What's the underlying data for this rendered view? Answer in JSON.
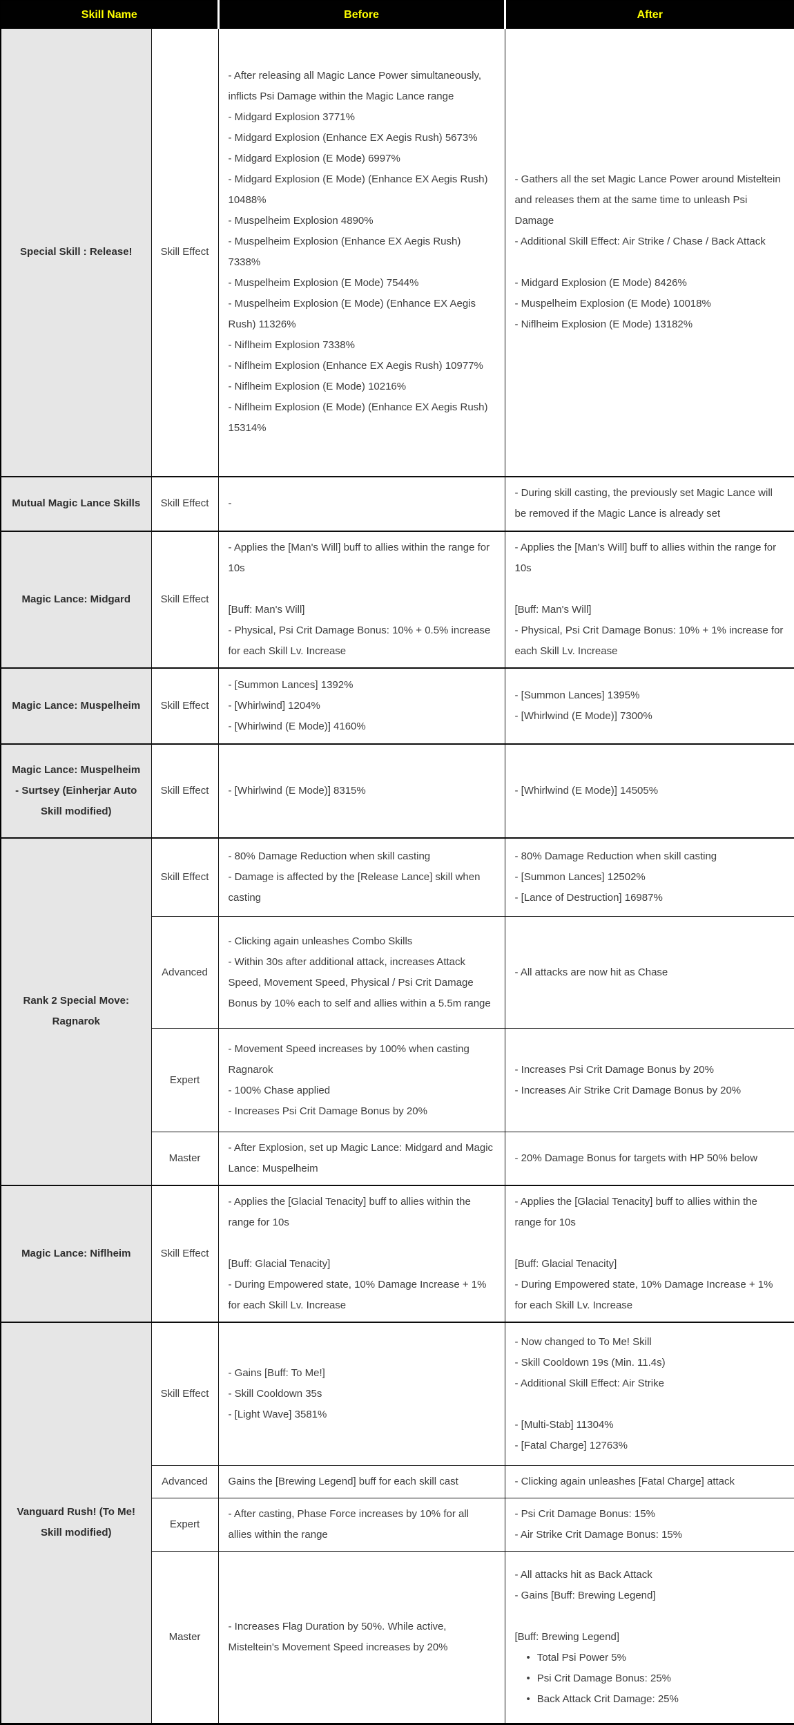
{
  "palette": {
    "header_bg": "#000000",
    "header_text": "#ffff00",
    "skill_name_col_bg": "#e6e6e6",
    "body_text": "#3d3d3d",
    "border": "#161616"
  },
  "header": {
    "skill_name": "Skill Name",
    "before": "Before",
    "after": "After"
  },
  "rows": [
    {
      "name": "Special Skill : Release!",
      "subs": [
        {
          "label": "Skill Effect",
          "before": [
            "- After releasing all Magic Lance Power simultaneously, inflicts Psi Damage within the Magic Lance range",
            "- Midgard Explosion 3771%",
            "- Midgard Explosion (Enhance EX Aegis Rush) 5673%",
            "- Midgard Explosion (E Mode) 6997%",
            "- Midgard Explosion (E Mode) (Enhance EX Aegis Rush) 10488%",
            "- Muspelheim Explosion 4890%",
            "- Muspelheim Explosion (Enhance EX Aegis Rush) 7338%",
            "- Muspelheim Explosion (E Mode) 7544%",
            "- Muspelheim Explosion (E Mode) (Enhance EX Aegis Rush) 11326%",
            "- Niflheim Explosion 7338%",
            "- Niflheim Explosion (Enhance EX Aegis Rush) 10977%",
            "- Niflheim Explosion (E Mode) 10216%",
            "- Niflheim Explosion (E Mode) (Enhance EX Aegis Rush) 15314%"
          ],
          "after": [
            "- Gathers all the set Magic Lance Power around Misteltein and releases them at the same time to unleash Psi Damage",
            "- Additional Skill Effect: Air Strike / Chase / Back Attack",
            "",
            "- Midgard Explosion (E Mode) 8426%",
            "- Muspelheim Explosion (E Mode) 10018%",
            "- Niflheim Explosion (E Mode) 13182%"
          ]
        }
      ]
    },
    {
      "name": "Mutual Magic Lance Skills",
      "subs": [
        {
          "label": "Skill Effect",
          "before": [
            "-"
          ],
          "after": [
            "- During skill casting, the previously set Magic Lance will be removed if the Magic Lance is already set"
          ]
        }
      ]
    },
    {
      "name": "Magic Lance: Midgard",
      "subs": [
        {
          "label": "Skill Effect",
          "before": [
            "- Applies the [Man's Will] buff to allies within the range for 10s",
            "",
            "[Buff: Man's Will]",
            "- Physical, Psi Crit Damage Bonus: 10% + 0.5% increase for each Skill Lv. Increase"
          ],
          "after": [
            "- Applies the [Man's Will] buff to allies within the range for 10s",
            "",
            "[Buff: Man's Will]",
            "- Physical, Psi Crit Damage Bonus: 10% + 1% increase for each Skill Lv. Increase"
          ]
        }
      ]
    },
    {
      "name": "Magic Lance: Muspelheim",
      "subs": [
        {
          "label": "Skill Effect",
          "before": [
            "- [Summon Lances] 1392%",
            "- [Whirlwind] 1204%",
            "- [Whirlwind (E Mode)] 4160%"
          ],
          "after": [
            "- [Summon Lances] 1395%",
            "- [Whirlwind (E Mode)] 7300%"
          ]
        }
      ]
    },
    {
      "name": "Magic Lance: Muspelheim - Surtsey (Einherjar Auto Skill modified)",
      "subs": [
        {
          "label": "Skill Effect",
          "before": [
            "- [Whirlwind (E Mode)] 8315%"
          ],
          "after": [
            "- [Whirlwind (E Mode)] 14505%"
          ]
        }
      ]
    },
    {
      "name": "Rank 2 Special Move: Ragnarok",
      "subs": [
        {
          "label": "Skill Effect",
          "before": [
            "- 80% Damage Reduction when skill casting",
            "- Damage is affected by the [Release Lance] skill when casting"
          ],
          "after": [
            "- 80% Damage Reduction when skill casting",
            "- [Summon Lances] 12502%",
            "- [Lance of Destruction] 16987%"
          ]
        },
        {
          "label": "Advanced",
          "before": [
            "- Clicking again unleashes Combo Skills",
            "- Within 30s after additional attack, increases Attack Speed, Movement Speed, Physical / Psi Crit Damage Bonus by 10% each to self and allies within a 5.5m range"
          ],
          "after": [
            "- All attacks are now hit as Chase"
          ]
        },
        {
          "label": "Expert",
          "before": [
            "- Movement Speed increases by 100% when casting Ragnarok",
            "- 100% Chase applied",
            "- Increases Psi Crit Damage Bonus by 20%"
          ],
          "after": [
            "- Increases Psi Crit Damage Bonus by 20%",
            "- Increases Air Strike Crit Damage Bonus by 20%"
          ]
        },
        {
          "label": "Master",
          "before": [
            "- After Explosion, set up Magic Lance: Midgard and Magic Lance: Muspelheim"
          ],
          "after": [
            "- 20% Damage Bonus for targets with HP 50% below"
          ]
        }
      ]
    },
    {
      "name": "Magic Lance: Niflheim",
      "subs": [
        {
          "label": "Skill Effect",
          "before": [
            "- Applies the [Glacial Tenacity] buff to allies within the range for 10s",
            "",
            "[Buff: Glacial Tenacity]",
            "- During Empowered state, 10% Damage Increase + 1% for each Skill Lv. Increase"
          ],
          "after": [
            "- Applies the [Glacial Tenacity] buff to allies within the range for 10s",
            "",
            "[Buff: Glacial Tenacity]",
            "- During Empowered state, 10% Damage Increase + 1% for each Skill Lv. Increase"
          ]
        }
      ]
    },
    {
      "name": "Vanguard Rush! (To Me! Skill modified)",
      "subs": [
        {
          "label": "Skill Effect",
          "before": [
            "- Gains [Buff: To Me!]",
            "- Skill Cooldown 35s",
            "- [Light Wave] 3581%"
          ],
          "after": [
            "- Now changed to To Me! Skill",
            "- Skill Cooldown 19s (Min. 11.4s)",
            "- Additional Skill Effect: Air Strike",
            "",
            "- [Multi-Stab] 11304%",
            "- [Fatal Charge] 12763%"
          ]
        },
        {
          "label": "Advanced",
          "before": [
            "Gains the [Brewing Legend] buff for each skill cast"
          ],
          "after": [
            "- Clicking again unleashes [Fatal Charge] attack"
          ]
        },
        {
          "label": "Expert",
          "before": [
            "- After casting, Phase Force increases by 10% for all allies within the range"
          ],
          "after": [
            "- Psi Crit Damage Bonus: 15%",
            "- Air Strike Crit Damage Bonus: 15%"
          ]
        },
        {
          "label": "Master",
          "before": [
            "- Increases Flag Duration by 50%. While active, Misteltein's Movement Speed increases by 20%"
          ],
          "after": [
            "- All attacks hit as Back Attack",
            "- Gains [Buff: Brewing Legend]",
            "",
            "[Buff: Brewing Legend]",
            "• Total Psi Power 5%",
            "• Psi Crit Damage Bonus: 25%",
            "• Back Attack Crit Damage: 25%"
          ]
        }
      ]
    }
  ]
}
